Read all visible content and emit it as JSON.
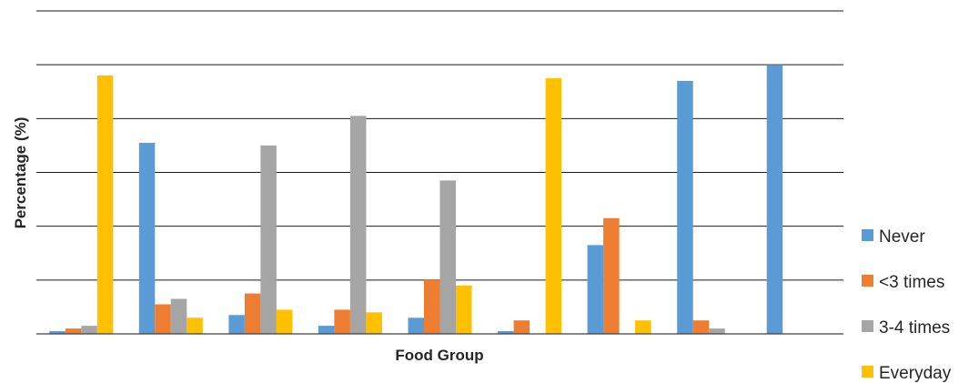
{
  "chart_data": {
    "type": "bar",
    "title": "",
    "xlabel": "Food Group",
    "ylabel": "Percentage (%)",
    "ylim": [
      0,
      120
    ],
    "grid": true,
    "tick_labels_shown": false,
    "legend_position": "right",
    "categories": [
      "",
      "",
      "",
      "",
      "",
      "",
      "",
      "",
      ""
    ],
    "series": [
      {
        "name": "Never",
        "color": "#5B9BD5",
        "values": [
          1,
          71,
          7,
          3,
          6,
          1,
          33,
          94,
          100
        ]
      },
      {
        "name": "<3 times",
        "color": "#ED7D31",
        "values": [
          2,
          11,
          15,
          9,
          20,
          5,
          43,
          5,
          0
        ]
      },
      {
        "name": "3-4 times",
        "color": "#A5A5A5",
        "values": [
          3,
          13,
          70,
          81,
          57,
          0,
          0,
          2,
          0
        ]
      },
      {
        "name": "Everyday",
        "color": "#FFC000",
        "values": [
          96,
          6,
          9,
          8,
          18,
          95,
          5,
          0,
          0
        ]
      }
    ]
  }
}
